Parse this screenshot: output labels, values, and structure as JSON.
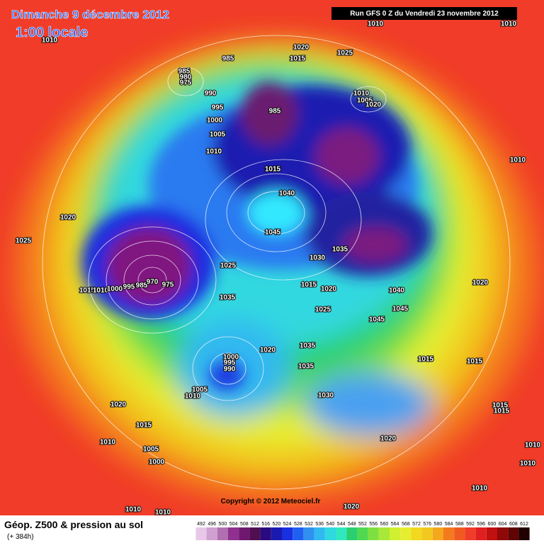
{
  "header": {
    "date": "Dimanche 9 décembre 2012",
    "time": "1:00 locale",
    "run": "Run GFS 0 Z du Vendredi 23 novembre 2012"
  },
  "copyright": "Copyright © 2012 Meteociel.fr",
  "footer": {
    "title": "Géop. Z500 & pression au sol",
    "lead": "(+ 384h)"
  },
  "scale_values": [
    492,
    496,
    500,
    504,
    508,
    512,
    516,
    520,
    524,
    528,
    532,
    536,
    540,
    544,
    548,
    552,
    556,
    560,
    564,
    568,
    572,
    576,
    580,
    584,
    588,
    592,
    596,
    600,
    604,
    608,
    612
  ],
  "isobar_labels": [
    1010,
    985,
    1020,
    1015,
    1025,
    1010,
    1010,
    985,
    980,
    975,
    990,
    995,
    1000,
    1005,
    1010,
    985,
    1010,
    1005,
    1020,
    1010,
    1015,
    1040,
    1045,
    1035,
    1030,
    1020,
    1025,
    1025,
    1015,
    1020,
    1040,
    1020,
    1015,
    1010,
    1000,
    995,
    985,
    970,
    975,
    1035,
    1025,
    1045,
    1045,
    1035,
    1020,
    1000,
    995,
    990,
    1035,
    1015,
    1015,
    1005,
    1010,
    1030,
    1020,
    1015,
    1015,
    1015,
    1010,
    1020,
    1005,
    1000,
    1010,
    1010,
    1010,
    1010,
    1010,
    1020
  ]
}
